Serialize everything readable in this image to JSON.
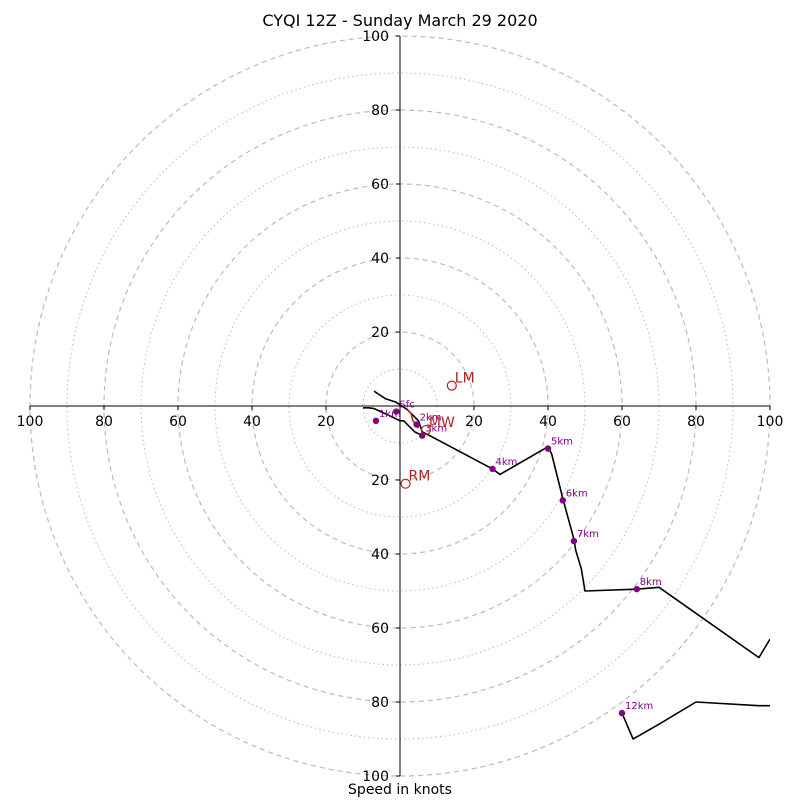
{
  "chart_data": {
    "type": "scatter",
    "title": "CYQI 12Z - Sunday March 29 2020",
    "xlabel": "Speed in knots",
    "ylabel": "",
    "xlim": [
      -100,
      100
    ],
    "ylim": [
      -100,
      100
    ],
    "ring_labels": [
      20,
      40,
      60,
      80,
      100
    ],
    "x_tick_labels": [
      "100",
      "80",
      "60",
      "40",
      "20",
      "20",
      "40",
      "60",
      "80",
      "100"
    ],
    "y_tick_labels": [
      "100",
      "80",
      "60",
      "40",
      "20",
      "20",
      "40",
      "60",
      "80",
      "100"
    ],
    "colors": {
      "hodograph": "#000000",
      "heights": "#800080",
      "motion": "#b22222",
      "rings": "#bbbbbb"
    },
    "hodograph": {
      "x": [
        -7,
        -4,
        -1,
        2,
        4,
        5,
        6,
        8,
        25,
        27,
        40,
        41,
        44,
        47,
        47.5,
        49,
        50,
        64,
        70,
        97,
        100
      ],
      "y": [
        4,
        2,
        1,
        -1,
        -3,
        -4,
        -7,
        -8,
        -17,
        -18.5,
        -11,
        -13,
        -25,
        -36,
        -39,
        -44,
        -50,
        -49.5,
        -49,
        -68,
        -63
      ]
    },
    "hodograph_lower_part": {
      "x": [
        -10,
        -8.5,
        -7,
        -2,
        0,
        1,
        4,
        6
      ],
      "y": [
        -0.5,
        -0.5,
        -0.7,
        -3,
        -4,
        -4,
        -7,
        -8
      ]
    },
    "hodograph_upper_part": {
      "x": [
        60,
        63,
        70,
        80,
        97,
        100
      ],
      "y": [
        -83,
        -90,
        -86,
        -80,
        -81,
        -81
      ]
    },
    "motion_segment": {
      "x": [
        2,
        3,
        3.5,
        5
      ],
      "y": [
        -1,
        -2,
        -4,
        -6
      ]
    },
    "height_markers": [
      {
        "label": "Sfc",
        "x": -1,
        "y": -1.5
      },
      {
        "label": "1km",
        "x": -6.5,
        "y": -4
      },
      {
        "label": "2km",
        "x": 4.5,
        "y": -5
      },
      {
        "label": "3km",
        "x": 6,
        "y": -8
      },
      {
        "label": "4km",
        "x": 25,
        "y": -17
      },
      {
        "label": "5km",
        "x": 40,
        "y": -11.5
      },
      {
        "label": "6km",
        "x": 44,
        "y": -25.5
      },
      {
        "label": "7km",
        "x": 47,
        "y": -36.5
      },
      {
        "label": "8km",
        "x": 64,
        "y": -49.5
      },
      {
        "label": "12km",
        "x": 60,
        "y": -83
      }
    ],
    "storm_motion": [
      {
        "label": "LM",
        "x": 14,
        "y": 5.5
      },
      {
        "label": "MW",
        "x": 7,
        "y": -6.5
      },
      {
        "label": "RM",
        "x": 1.5,
        "y": -21
      }
    ]
  }
}
